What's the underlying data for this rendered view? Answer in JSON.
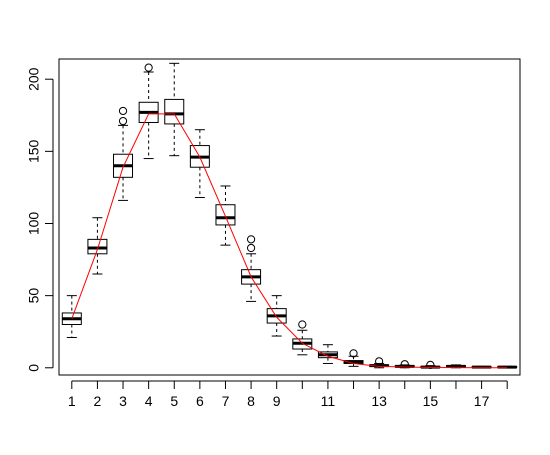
{
  "chart_data": {
    "type": "box",
    "title": "",
    "xlabel": "",
    "ylabel": "",
    "categories": [
      1,
      2,
      3,
      4,
      5,
      6,
      7,
      8,
      9,
      10,
      11,
      12,
      13,
      14,
      15,
      16,
      17,
      18
    ],
    "x_tick_labels": [
      "1",
      "2",
      "3",
      "4",
      "5",
      "6",
      "7",
      "8",
      "9",
      "",
      "11",
      "",
      "13",
      "",
      "15",
      "",
      "17",
      ""
    ],
    "y_ticks": [
      0,
      50,
      100,
      150,
      200
    ],
    "y_tick_labels": [
      "0",
      "50",
      "100",
      "150",
      "200"
    ],
    "xlim": [
      0.5,
      18.5
    ],
    "ylim": [
      -5,
      214
    ],
    "series": [
      {
        "type": "boxplot",
        "boxes": [
          {
            "x": 1,
            "min": 21,
            "q1": 30,
            "median": 34,
            "q3": 38,
            "max": 50,
            "outliers": []
          },
          {
            "x": 2,
            "min": 65,
            "q1": 79,
            "median": 83,
            "q3": 89,
            "max": 104,
            "outliers": []
          },
          {
            "x": 3,
            "min": 116,
            "q1": 132,
            "median": 140,
            "q3": 148,
            "max": 168,
            "outliers": [
              171,
              178
            ]
          },
          {
            "x": 4,
            "min": 145,
            "q1": 170,
            "median": 177,
            "q3": 184,
            "max": 205,
            "outliers": [
              208
            ]
          },
          {
            "x": 5,
            "min": 147,
            "q1": 169,
            "median": 176,
            "q3": 186,
            "max": 211,
            "outliers": []
          },
          {
            "x": 6,
            "min": 118,
            "q1": 139,
            "median": 146,
            "q3": 154,
            "max": 165,
            "outliers": []
          },
          {
            "x": 7,
            "min": 85,
            "q1": 99,
            "median": 104,
            "q3": 113,
            "max": 126,
            "outliers": []
          },
          {
            "x": 8,
            "min": 46,
            "q1": 58,
            "median": 63,
            "q3": 68,
            "max": 79,
            "outliers": [
              83,
              89
            ]
          },
          {
            "x": 9,
            "min": 22,
            "q1": 31,
            "median": 36,
            "q3": 41,
            "max": 50,
            "outliers": []
          },
          {
            "x": 10,
            "min": 9,
            "q1": 13,
            "median": 17,
            "q3": 20,
            "max": 26,
            "outliers": [
              30
            ]
          },
          {
            "x": 11,
            "min": 3,
            "q1": 7,
            "median": 9,
            "q3": 11,
            "max": 16,
            "outliers": []
          },
          {
            "x": 12,
            "min": 1,
            "q1": 3,
            "median": 4,
            "q3": 5,
            "max": 8,
            "outliers": [
              10
            ]
          },
          {
            "x": 13,
            "min": 0,
            "q1": 1,
            "median": 1.5,
            "q3": 2,
            "max": 3,
            "outliers": [
              4.5
            ]
          },
          {
            "x": 14,
            "min": 0,
            "q1": 0.5,
            "median": 1,
            "q3": 1.5,
            "max": 2,
            "outliers": [
              2.5
            ]
          },
          {
            "x": 15,
            "min": 0,
            "q1": 0.2,
            "median": 0.5,
            "q3": 1,
            "max": 1.5,
            "outliers": [
              2
            ]
          },
          {
            "x": 16,
            "min": 0,
            "q1": 0.5,
            "median": 1,
            "q3": 1.5,
            "max": 2,
            "outliers": []
          },
          {
            "x": 17,
            "min": 0,
            "q1": 0.2,
            "median": 0.5,
            "q3": 0.8,
            "max": 1,
            "outliers": []
          },
          {
            "x": 18,
            "min": 0,
            "q1": 0.2,
            "median": 0.5,
            "q3": 0.8,
            "max": 1,
            "outliers": []
          }
        ]
      },
      {
        "type": "line",
        "color": "#ff0000",
        "x": [
          1,
          2,
          3,
          4,
          5,
          6,
          7,
          8,
          9,
          10,
          11,
          12,
          13,
          14,
          15,
          16,
          17,
          18
        ],
        "values": [
          34,
          82,
          139,
          176,
          176,
          146,
          105,
          63,
          35,
          17,
          8,
          3,
          1,
          0.5,
          0.2,
          0.1,
          0,
          0
        ]
      }
    ]
  }
}
